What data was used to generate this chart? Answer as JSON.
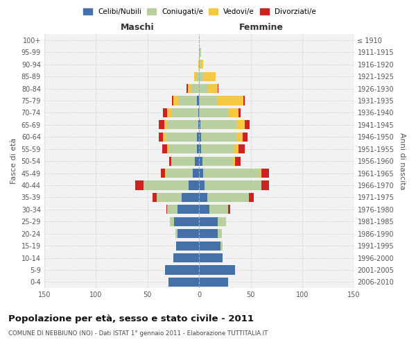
{
  "age_groups": [
    "0-4",
    "5-9",
    "10-14",
    "15-19",
    "20-24",
    "25-29",
    "30-34",
    "35-39",
    "40-44",
    "45-49",
    "50-54",
    "55-59",
    "60-64",
    "65-69",
    "70-74",
    "75-79",
    "80-84",
    "85-89",
    "90-94",
    "95-99",
    "100+"
  ],
  "birth_years": [
    "2006-2010",
    "2001-2005",
    "1996-2000",
    "1991-1995",
    "1986-1990",
    "1981-1985",
    "1976-1980",
    "1971-1975",
    "1966-1970",
    "1961-1965",
    "1956-1960",
    "1951-1955",
    "1946-1950",
    "1941-1945",
    "1936-1940",
    "1931-1935",
    "1926-1930",
    "1921-1925",
    "1916-1920",
    "1911-1915",
    "≤ 1910"
  ],
  "male": {
    "celibi": [
      30,
      33,
      25,
      22,
      21,
      24,
      21,
      17,
      10,
      6,
      4,
      2,
      2,
      1,
      1,
      2,
      0,
      0,
      0,
      0,
      0
    ],
    "coniugati": [
      0,
      0,
      0,
      0,
      2,
      4,
      10,
      24,
      44,
      26,
      22,
      27,
      30,
      30,
      26,
      18,
      8,
      3,
      0,
      0,
      0
    ],
    "vedovi": [
      0,
      0,
      0,
      0,
      0,
      0,
      0,
      0,
      0,
      1,
      1,
      2,
      3,
      3,
      4,
      5,
      3,
      2,
      1,
      0,
      0
    ],
    "divorziati": [
      0,
      0,
      0,
      0,
      0,
      0,
      1,
      4,
      8,
      4,
      2,
      5,
      4,
      5,
      4,
      1,
      1,
      0,
      0,
      0,
      0
    ]
  },
  "female": {
    "nubili": [
      28,
      35,
      23,
      21,
      18,
      18,
      10,
      8,
      5,
      4,
      3,
      2,
      2,
      1,
      0,
      0,
      0,
      0,
      0,
      0,
      0
    ],
    "coniugate": [
      0,
      0,
      0,
      2,
      4,
      8,
      18,
      40,
      55,
      55,
      30,
      32,
      35,
      35,
      28,
      18,
      8,
      4,
      1,
      1,
      0
    ],
    "vedove": [
      0,
      0,
      0,
      0,
      0,
      0,
      0,
      0,
      0,
      1,
      2,
      4,
      5,
      8,
      10,
      25,
      10,
      12,
      3,
      1,
      0
    ],
    "divorziate": [
      0,
      0,
      0,
      0,
      0,
      0,
      2,
      5,
      8,
      8,
      5,
      6,
      5,
      5,
      2,
      1,
      1,
      0,
      0,
      0,
      0
    ]
  },
  "colors": {
    "celibi_nubili": "#4472a8",
    "coniugati_e": "#b8cfa0",
    "vedovi_e": "#f5c842",
    "divorziati_e": "#cc2222"
  },
  "xlim": 150,
  "title": "Popolazione per età, sesso e stato civile - 2011",
  "subtitle": "COMUNE DI NEBBIUNO (NO) - Dati ISTAT 1° gennaio 2011 - Elaborazione TUTTITALIA.IT",
  "label_maschi": "Maschi",
  "label_femmine": "Femmine",
  "ylabel_left": "Fasce di età",
  "ylabel_right": "Anni di nascita",
  "legend": [
    "Celibi/Nubili",
    "Coniugati/e",
    "Vedovi/e",
    "Divorziati/e"
  ],
  "background_color": "#ffffff",
  "plot_bg": "#f2f2f2",
  "grid_color": "#cccccc"
}
